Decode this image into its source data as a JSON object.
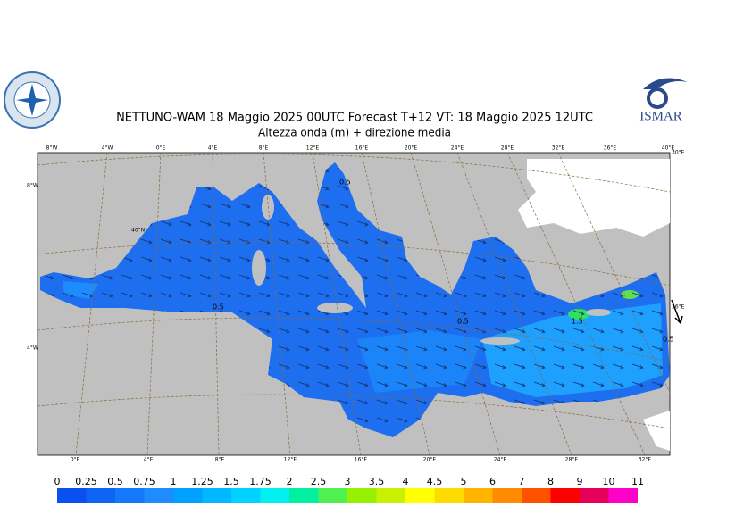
{
  "header": {
    "title": "NETTUNO-WAM  18   Maggio  2025 00UTC Forecast T+12 VT: 18   Maggio  2025 12UTC",
    "subtitle": "Altezza onda (m) + direzione media"
  },
  "logo": {
    "text": "ISMAR"
  },
  "map": {
    "top_labels": [
      "8°W",
      "4°W",
      "0°E",
      "4°E",
      "8°E",
      "12°E",
      "16°E",
      "20°E",
      "24°E",
      "28°E",
      "32°E",
      "36°E",
      "40°E"
    ],
    "bottom_labels": [
      "0°E",
      "4°E",
      "8°E",
      "12°E",
      "16°E",
      "20°E",
      "24°E",
      "28°E",
      "32°E"
    ],
    "left_labels": [
      "8°W",
      "4°W"
    ],
    "right_labels": [
      "30°E",
      "36°E"
    ],
    "inner_labels": [
      "40°N"
    ],
    "contour_labels": [
      "0.5",
      "1.5",
      "0.5",
      "0.5",
      "0.5"
    ]
  },
  "colorbar": {
    "levels": [
      0,
      0.25,
      0.5,
      0.75,
      1,
      1.25,
      1.5,
      1.75,
      2,
      2.5,
      3,
      3.5,
      4,
      4.5,
      5,
      6,
      7,
      8,
      9,
      10,
      11
    ],
    "colors": [
      "#0a50f0",
      "#0f64f5",
      "#1478fa",
      "#1e8cff",
      "#00a0ff",
      "#00b8ff",
      "#00d2ff",
      "#00f0f0",
      "#00f0a0",
      "#50f050",
      "#96f000",
      "#c8f000",
      "#ffff00",
      "#ffdc00",
      "#ffb400",
      "#ff8c00",
      "#ff5000",
      "#ff0000",
      "#e6005a",
      "#ff00c8"
    ]
  }
}
